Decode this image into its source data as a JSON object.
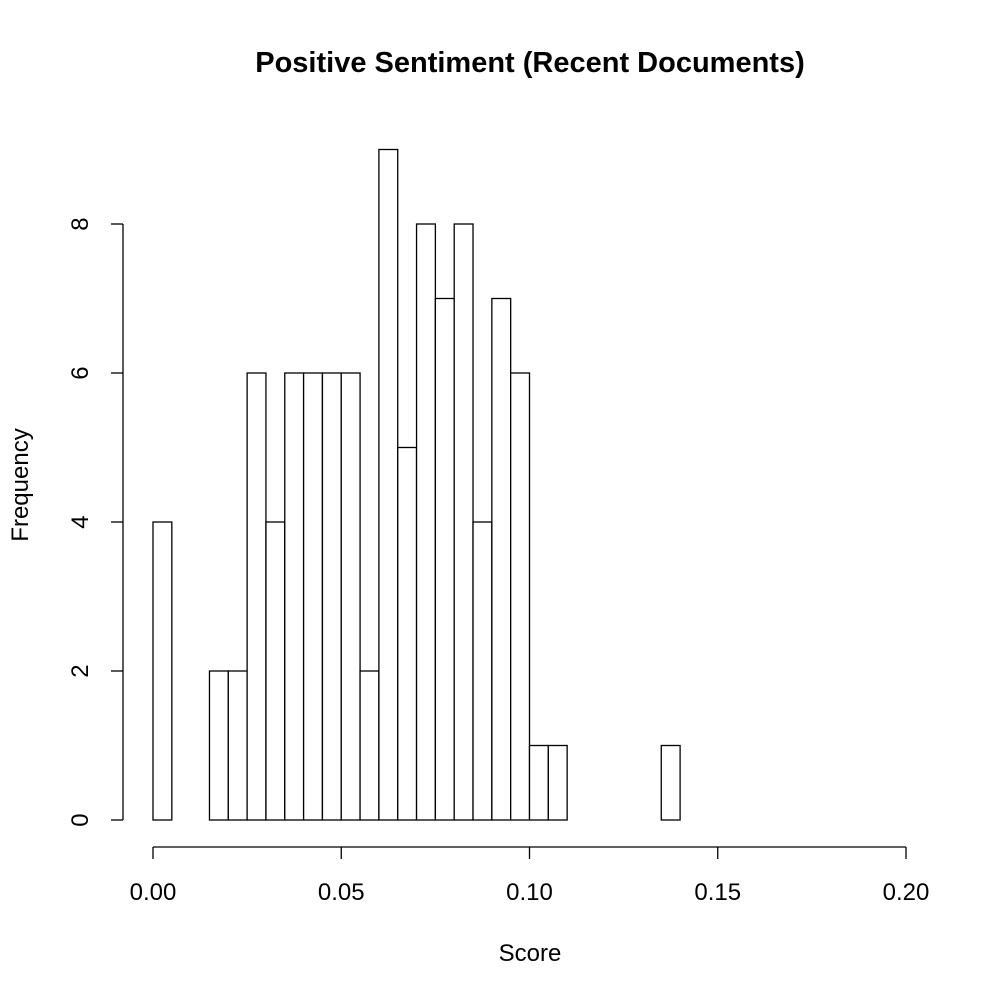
{
  "chart_data": {
    "type": "bar",
    "title": "Positive Sentiment (Recent Documents)",
    "xlabel": "Score",
    "ylabel": "Frequency",
    "xlim": [
      0,
      0.2
    ],
    "ylim": [
      0,
      9
    ],
    "bin_width": 0.005,
    "x_ticks": [
      0,
      0.05,
      0.1,
      0.15,
      0.2
    ],
    "x_tick_labels": [
      "0.00",
      "0.05",
      "0.10",
      "0.15",
      "0.20"
    ],
    "y_ticks": [
      0,
      2,
      4,
      6,
      8
    ],
    "y_tick_labels": [
      "0",
      "2",
      "4",
      "6",
      "8"
    ],
    "grid": false,
    "bins_start": [
      0,
      0.005,
      0.01,
      0.015,
      0.02,
      0.025,
      0.03,
      0.035,
      0.04,
      0.045,
      0.05,
      0.055,
      0.06,
      0.065,
      0.07,
      0.075,
      0.08,
      0.085,
      0.09,
      0.095,
      0.1,
      0.105,
      0.11,
      0.115,
      0.12,
      0.125,
      0.13,
      0.135
    ],
    "values": [
      4,
      0,
      0,
      2,
      2,
      6,
      4,
      6,
      6,
      6,
      6,
      2,
      9,
      5,
      8,
      7,
      8,
      4,
      7,
      6,
      1,
      1,
      0,
      0,
      0,
      0,
      0,
      1
    ]
  }
}
